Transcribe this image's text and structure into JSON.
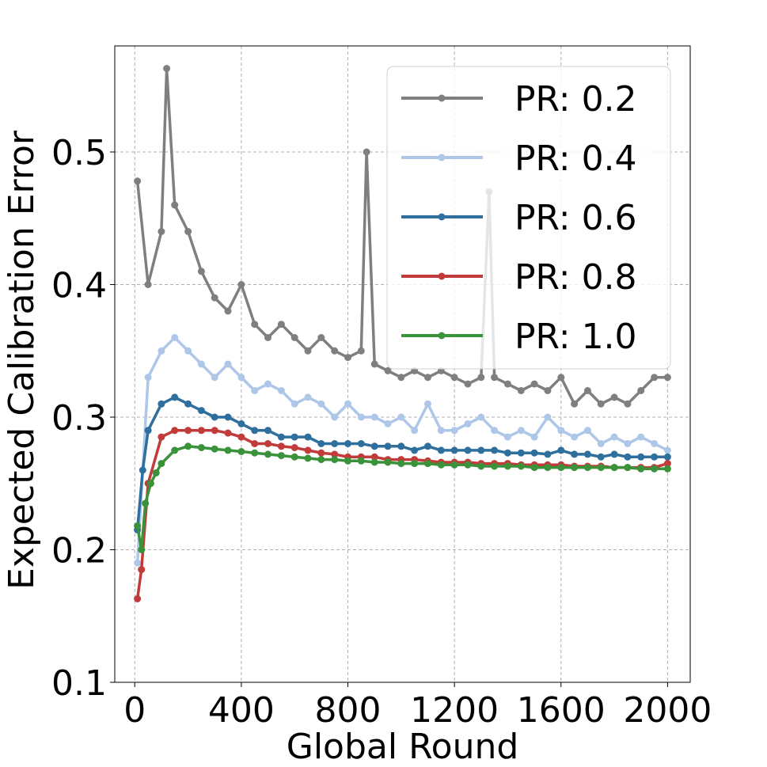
{
  "chart_data": {
    "type": "line",
    "title": "",
    "xlabel": "Global Round",
    "ylabel": "Expected Calibration Error",
    "xlim": [
      -75,
      2085
    ],
    "ylim": [
      0.1,
      0.58
    ],
    "xticks": [
      0,
      400,
      800,
      1200,
      1600,
      2000
    ],
    "xtick_labels": [
      "0",
      "400",
      "800",
      "1200",
      "1600",
      "2000"
    ],
    "yticks": [
      0.1,
      0.2,
      0.3,
      0.4,
      0.5
    ],
    "ytick_labels": [
      "0.1",
      "0.2",
      "0.3",
      "0.4",
      "0.5"
    ],
    "grid": true,
    "legend_position": "top-right",
    "series": [
      {
        "name": "PR: 0.2",
        "color": "#7f7f7f",
        "x": [
          10,
          50,
          100,
          120,
          150,
          200,
          250,
          300,
          350,
          400,
          450,
          500,
          550,
          600,
          650,
          700,
          750,
          800,
          850,
          870,
          900,
          950,
          1000,
          1050,
          1100,
          1150,
          1200,
          1250,
          1300,
          1330,
          1350,
          1400,
          1450,
          1500,
          1550,
          1600,
          1650,
          1700,
          1750,
          1800,
          1850,
          1900,
          1950,
          2000
        ],
        "y": [
          0.478,
          0.4,
          0.44,
          0.563,
          0.46,
          0.44,
          0.41,
          0.39,
          0.38,
          0.4,
          0.37,
          0.36,
          0.37,
          0.36,
          0.35,
          0.36,
          0.35,
          0.345,
          0.35,
          0.5,
          0.34,
          0.335,
          0.33,
          0.335,
          0.33,
          0.335,
          0.33,
          0.325,
          0.33,
          0.47,
          0.33,
          0.325,
          0.32,
          0.325,
          0.32,
          0.33,
          0.31,
          0.32,
          0.31,
          0.315,
          0.31,
          0.32,
          0.33,
          0.33
        ]
      },
      {
        "name": "PR: 0.4",
        "color": "#aec7e8",
        "x": [
          10,
          50,
          100,
          150,
          200,
          250,
          300,
          350,
          400,
          450,
          500,
          550,
          600,
          650,
          700,
          750,
          800,
          850,
          900,
          950,
          1000,
          1050,
          1100,
          1150,
          1200,
          1250,
          1300,
          1350,
          1400,
          1450,
          1500,
          1550,
          1600,
          1650,
          1700,
          1750,
          1800,
          1850,
          1900,
          1950,
          2000
        ],
        "y": [
          0.19,
          0.33,
          0.35,
          0.36,
          0.35,
          0.34,
          0.33,
          0.34,
          0.33,
          0.32,
          0.325,
          0.32,
          0.31,
          0.315,
          0.31,
          0.3,
          0.31,
          0.3,
          0.3,
          0.295,
          0.3,
          0.29,
          0.31,
          0.29,
          0.29,
          0.295,
          0.3,
          0.29,
          0.285,
          0.29,
          0.285,
          0.3,
          0.29,
          0.285,
          0.29,
          0.28,
          0.285,
          0.28,
          0.285,
          0.28,
          0.275
        ]
      },
      {
        "name": "PR: 0.6",
        "color": "#2e6f9e",
        "x": [
          10,
          30,
          50,
          100,
          150,
          200,
          250,
          300,
          350,
          400,
          450,
          500,
          550,
          600,
          650,
          700,
          750,
          800,
          850,
          900,
          950,
          1000,
          1050,
          1100,
          1150,
          1200,
          1250,
          1300,
          1350,
          1400,
          1450,
          1500,
          1550,
          1600,
          1650,
          1700,
          1750,
          1800,
          1850,
          1900,
          1950,
          2000
        ],
        "y": [
          0.215,
          0.26,
          0.29,
          0.31,
          0.315,
          0.31,
          0.305,
          0.3,
          0.3,
          0.295,
          0.29,
          0.29,
          0.285,
          0.285,
          0.285,
          0.28,
          0.28,
          0.28,
          0.28,
          0.278,
          0.278,
          0.278,
          0.275,
          0.278,
          0.275,
          0.275,
          0.275,
          0.275,
          0.275,
          0.273,
          0.273,
          0.273,
          0.272,
          0.275,
          0.272,
          0.272,
          0.27,
          0.272,
          0.27,
          0.27,
          0.27,
          0.27
        ]
      },
      {
        "name": "PR: 0.8",
        "color": "#c23b3b",
        "x": [
          10,
          25,
          50,
          100,
          150,
          200,
          250,
          300,
          350,
          400,
          450,
          500,
          550,
          600,
          650,
          700,
          750,
          800,
          850,
          900,
          950,
          1000,
          1050,
          1100,
          1150,
          1200,
          1250,
          1300,
          1350,
          1400,
          1450,
          1500,
          1550,
          1600,
          1650,
          1700,
          1750,
          1800,
          1850,
          1900,
          1950,
          2000
        ],
        "y": [
          0.163,
          0.185,
          0.25,
          0.285,
          0.29,
          0.29,
          0.29,
          0.29,
          0.288,
          0.285,
          0.28,
          0.28,
          0.278,
          0.277,
          0.275,
          0.273,
          0.272,
          0.27,
          0.27,
          0.27,
          0.268,
          0.268,
          0.268,
          0.267,
          0.266,
          0.266,
          0.266,
          0.265,
          0.265,
          0.265,
          0.264,
          0.264,
          0.264,
          0.264,
          0.263,
          0.263,
          0.263,
          0.262,
          0.262,
          0.262,
          0.262,
          0.265
        ]
      },
      {
        "name": "PR: 1.0",
        "color": "#3a923a",
        "x": [
          10,
          25,
          40,
          60,
          80,
          100,
          150,
          200,
          250,
          300,
          350,
          400,
          450,
          500,
          550,
          600,
          650,
          700,
          750,
          800,
          850,
          900,
          950,
          1000,
          1050,
          1100,
          1150,
          1200,
          1250,
          1300,
          1350,
          1400,
          1450,
          1500,
          1550,
          1600,
          1650,
          1700,
          1750,
          1800,
          1850,
          1900,
          1950,
          2000
        ],
        "y": [
          0.218,
          0.2,
          0.235,
          0.25,
          0.258,
          0.265,
          0.275,
          0.278,
          0.277,
          0.276,
          0.275,
          0.274,
          0.273,
          0.272,
          0.271,
          0.27,
          0.269,
          0.268,
          0.268,
          0.267,
          0.267,
          0.266,
          0.266,
          0.265,
          0.265,
          0.265,
          0.264,
          0.264,
          0.264,
          0.263,
          0.263,
          0.263,
          0.263,
          0.262,
          0.262,
          0.262,
          0.262,
          0.262,
          0.262,
          0.262,
          0.262,
          0.261,
          0.261,
          0.261
        ]
      }
    ]
  }
}
